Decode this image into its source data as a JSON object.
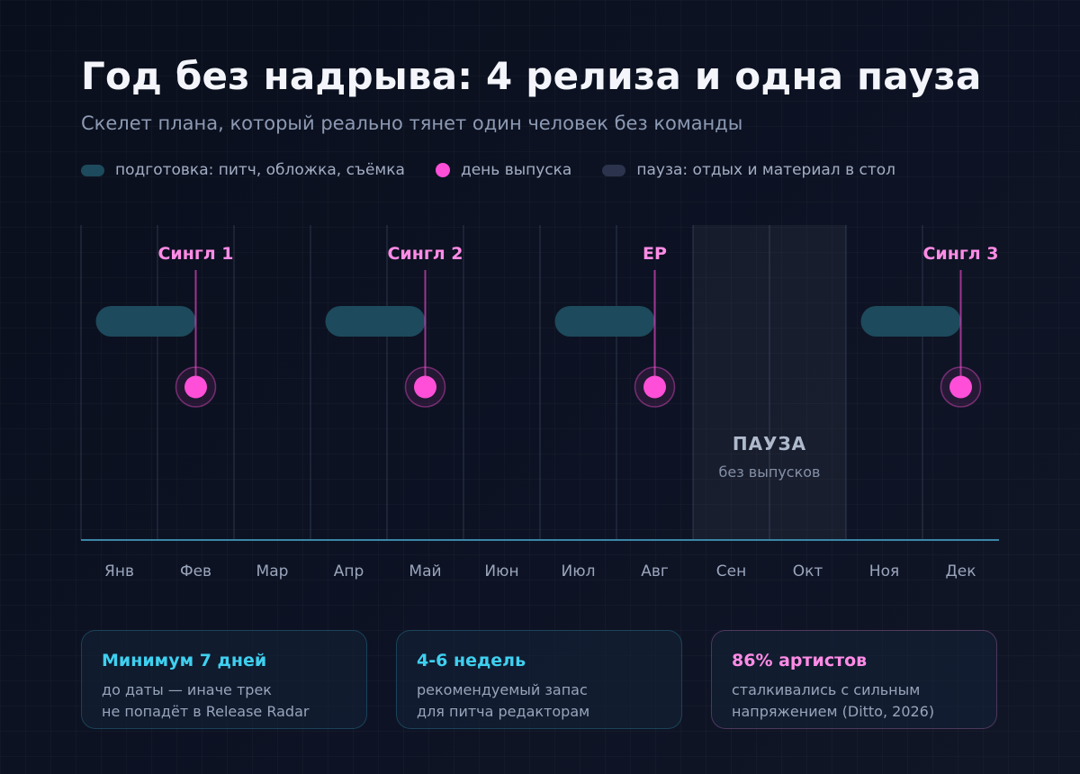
{
  "header": {
    "title": "Год без надрыва: 4 релиза и одна пауза",
    "subtitle": "Скелет плана, который реально тянет один человек без команды"
  },
  "legend": [
    {
      "label": "подготовка: питч, обложка, съёмка",
      "kind": "prep"
    },
    {
      "label": "день выпуска",
      "kind": "release"
    },
    {
      "label": "пауза: отдых и материал в стол",
      "kind": "pause"
    }
  ],
  "timeline": {
    "months": [
      "Янв",
      "Фев",
      "Мар",
      "Апр",
      "Май",
      "Июн",
      "Июл",
      "Авг",
      "Сен",
      "Окт",
      "Ноя",
      "Дек"
    ],
    "releases": [
      {
        "label": "Сингл 1",
        "month": 2,
        "prep_start_month": 0.6
      },
      {
        "label": "Сингл 2",
        "month": 5,
        "prep_start_month": 3.6
      },
      {
        "label": "EP",
        "month": 8,
        "prep_start_month": 6.6
      },
      {
        "label": "Сингл 3",
        "month": 12,
        "prep_start_month": 10.6
      }
    ],
    "pause": {
      "title": "ПАУЗА",
      "subtitle": "без выпусков",
      "start_month": 9,
      "end_month": 10
    }
  },
  "cards": [
    {
      "title": "Минимум 7 дней",
      "lines": [
        "до даты — иначе трек",
        "не попадёт в Release Radar"
      ],
      "accent": "#3fd0f0"
    },
    {
      "title": "4-6 недель",
      "lines": [
        "рекомендуемый запас",
        "для питча редакторам"
      ],
      "accent": "#3fd0f0"
    },
    {
      "title": "86% артистов",
      "lines": [
        "сталкивались с сильным",
        "напряжением (Ditto, 2026)"
      ],
      "accent": "#ff8ce6"
    }
  ],
  "colors": {
    "prep": "#1d4a5c",
    "release": "#ff4fd8",
    "pause": "#2b344c",
    "axis": "#3b86a8"
  }
}
